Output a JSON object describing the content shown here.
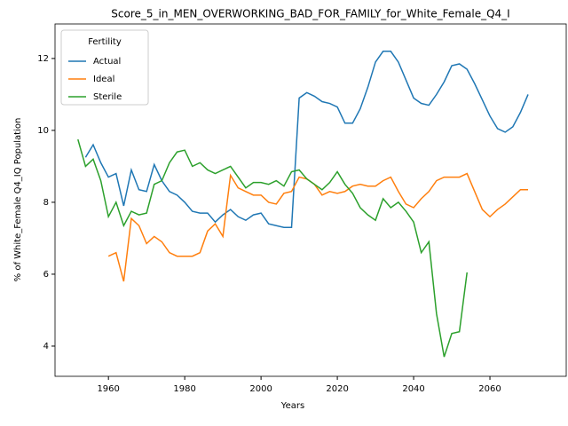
{
  "chart_data": {
    "type": "line",
    "title": "Score_5_in_MEN_OVERWORKING_BAD_FOR_FAMILY_for_White_Female_Q4_I",
    "xlabel": "Years",
    "ylabel": "% of White_Female Q4_IQ Population",
    "x": [
      1952,
      1954,
      1956,
      1958,
      1960,
      1962,
      1964,
      1966,
      1968,
      1970,
      1972,
      1974,
      1976,
      1978,
      1980,
      1982,
      1984,
      1986,
      1988,
      1990,
      1992,
      1994,
      1996,
      1998,
      2000,
      2002,
      2004,
      2006,
      2008,
      2010,
      2012,
      2014,
      2016,
      2018,
      2020,
      2022,
      2024,
      2026,
      2028,
      2030,
      2032,
      2034,
      2036,
      2038,
      2040,
      2042,
      2044,
      2046,
      2048,
      2050,
      2052,
      2054,
      2056,
      2058,
      2060,
      2062,
      2064,
      2066,
      2068,
      2070
    ],
    "series": [
      {
        "name": "Actual",
        "color": "#1f77b4",
        "values": [
          null,
          9.25,
          9.6,
          9.1,
          8.7,
          8.8,
          7.9,
          8.9,
          8.35,
          8.3,
          9.05,
          8.6,
          8.3,
          8.2,
          8.0,
          7.75,
          7.7,
          7.7,
          7.45,
          7.65,
          7.8,
          7.6,
          7.5,
          7.65,
          7.7,
          7.4,
          7.35,
          7.3,
          7.3,
          10.9,
          11.05,
          10.95,
          10.8,
          10.75,
          10.65,
          10.2,
          10.2,
          10.6,
          11.2,
          11.9,
          12.2,
          12.2,
          11.9,
          11.4,
          10.9,
          10.75,
          10.7,
          11.0,
          11.35,
          11.8,
          11.85,
          11.7,
          11.3,
          10.85,
          10.4,
          10.05,
          9.95,
          10.1,
          10.5,
          11.0
        ]
      },
      {
        "name": "Ideal",
        "color": "#ff7f0e",
        "values": [
          null,
          null,
          null,
          null,
          6.5,
          6.6,
          5.8,
          7.55,
          7.35,
          6.85,
          7.05,
          6.9,
          6.6,
          6.5,
          6.5,
          6.5,
          6.6,
          7.2,
          7.4,
          7.05,
          8.75,
          8.4,
          8.3,
          8.2,
          8.2,
          8.0,
          7.95,
          8.25,
          8.3,
          8.7,
          8.65,
          8.5,
          8.2,
          8.3,
          8.25,
          8.3,
          8.45,
          8.5,
          8.45,
          8.45,
          8.6,
          8.7,
          8.3,
          7.95,
          7.85,
          8.1,
          8.3,
          8.6,
          8.7,
          8.7,
          8.7,
          8.8,
          8.3,
          7.8,
          7.6,
          7.8,
          7.95,
          8.15,
          8.35,
          8.35
        ]
      },
      {
        "name": "Sterile",
        "color": "#2ca02c",
        "values": [
          9.75,
          9.0,
          9.2,
          8.6,
          7.6,
          8.0,
          7.35,
          7.75,
          7.65,
          7.7,
          8.5,
          8.6,
          9.1,
          9.4,
          9.45,
          9.0,
          9.1,
          8.9,
          8.8,
          8.9,
          9.0,
          8.7,
          8.4,
          8.55,
          8.55,
          8.5,
          8.6,
          8.45,
          8.85,
          8.9,
          8.65,
          8.5,
          8.35,
          8.55,
          8.85,
          8.5,
          8.25,
          7.85,
          7.65,
          7.5,
          8.1,
          7.85,
          8.0,
          7.75,
          7.45,
          6.6,
          6.9,
          4.9,
          3.7,
          4.35,
          4.4,
          6.05,
          null,
          null,
          null,
          null,
          null,
          null,
          null,
          null
        ]
      }
    ],
    "legend_title": "Fertility",
    "legend_loc": "upper left",
    "xlim": [
      1946,
      2080
    ],
    "xticks": [
      1960,
      1980,
      2000,
      2020,
      2040,
      2060
    ],
    "ylim": [
      3.16,
      12.96
    ],
    "yticks": [
      4,
      6,
      8,
      10,
      12
    ]
  }
}
